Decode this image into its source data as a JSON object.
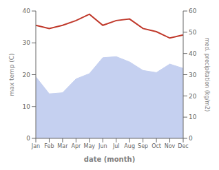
{
  "chart_data": {
    "type": "line",
    "xlabel": "date (month)",
    "ylabel": "max temp (C)",
    "y2label": "med. precipitation (kg/m2)",
    "categories": [
      "Jan",
      "Feb",
      "Mar",
      "Apr",
      "May",
      "Jun",
      "Jul",
      "Aug",
      "Sep",
      "Oct",
      "Nov",
      "Dec"
    ],
    "series": [
      {
        "type": "area",
        "axis": "y2",
        "color": "#c5d0f0",
        "values": [
          29.0,
          21.0,
          21.5,
          28.0,
          30.5,
          38.0,
          38.5,
          36.0,
          32.0,
          31.0,
          35.0,
          33.0
        ]
      },
      {
        "type": "line",
        "color": "#c0392b",
        "values": [
          35.5,
          34.5,
          35.5,
          37.0,
          39.0,
          35.5,
          37.0,
          37.5,
          34.5,
          33.5,
          31.5,
          32.5
        ]
      }
    ],
    "ylim": [
      0,
      40
    ],
    "yticks": [
      0,
      10,
      20,
      30,
      40
    ],
    "y2lim": [
      0,
      60
    ],
    "y2ticks": [
      0,
      10,
      20,
      30,
      40,
      50,
      60
    ],
    "grid": false
  }
}
